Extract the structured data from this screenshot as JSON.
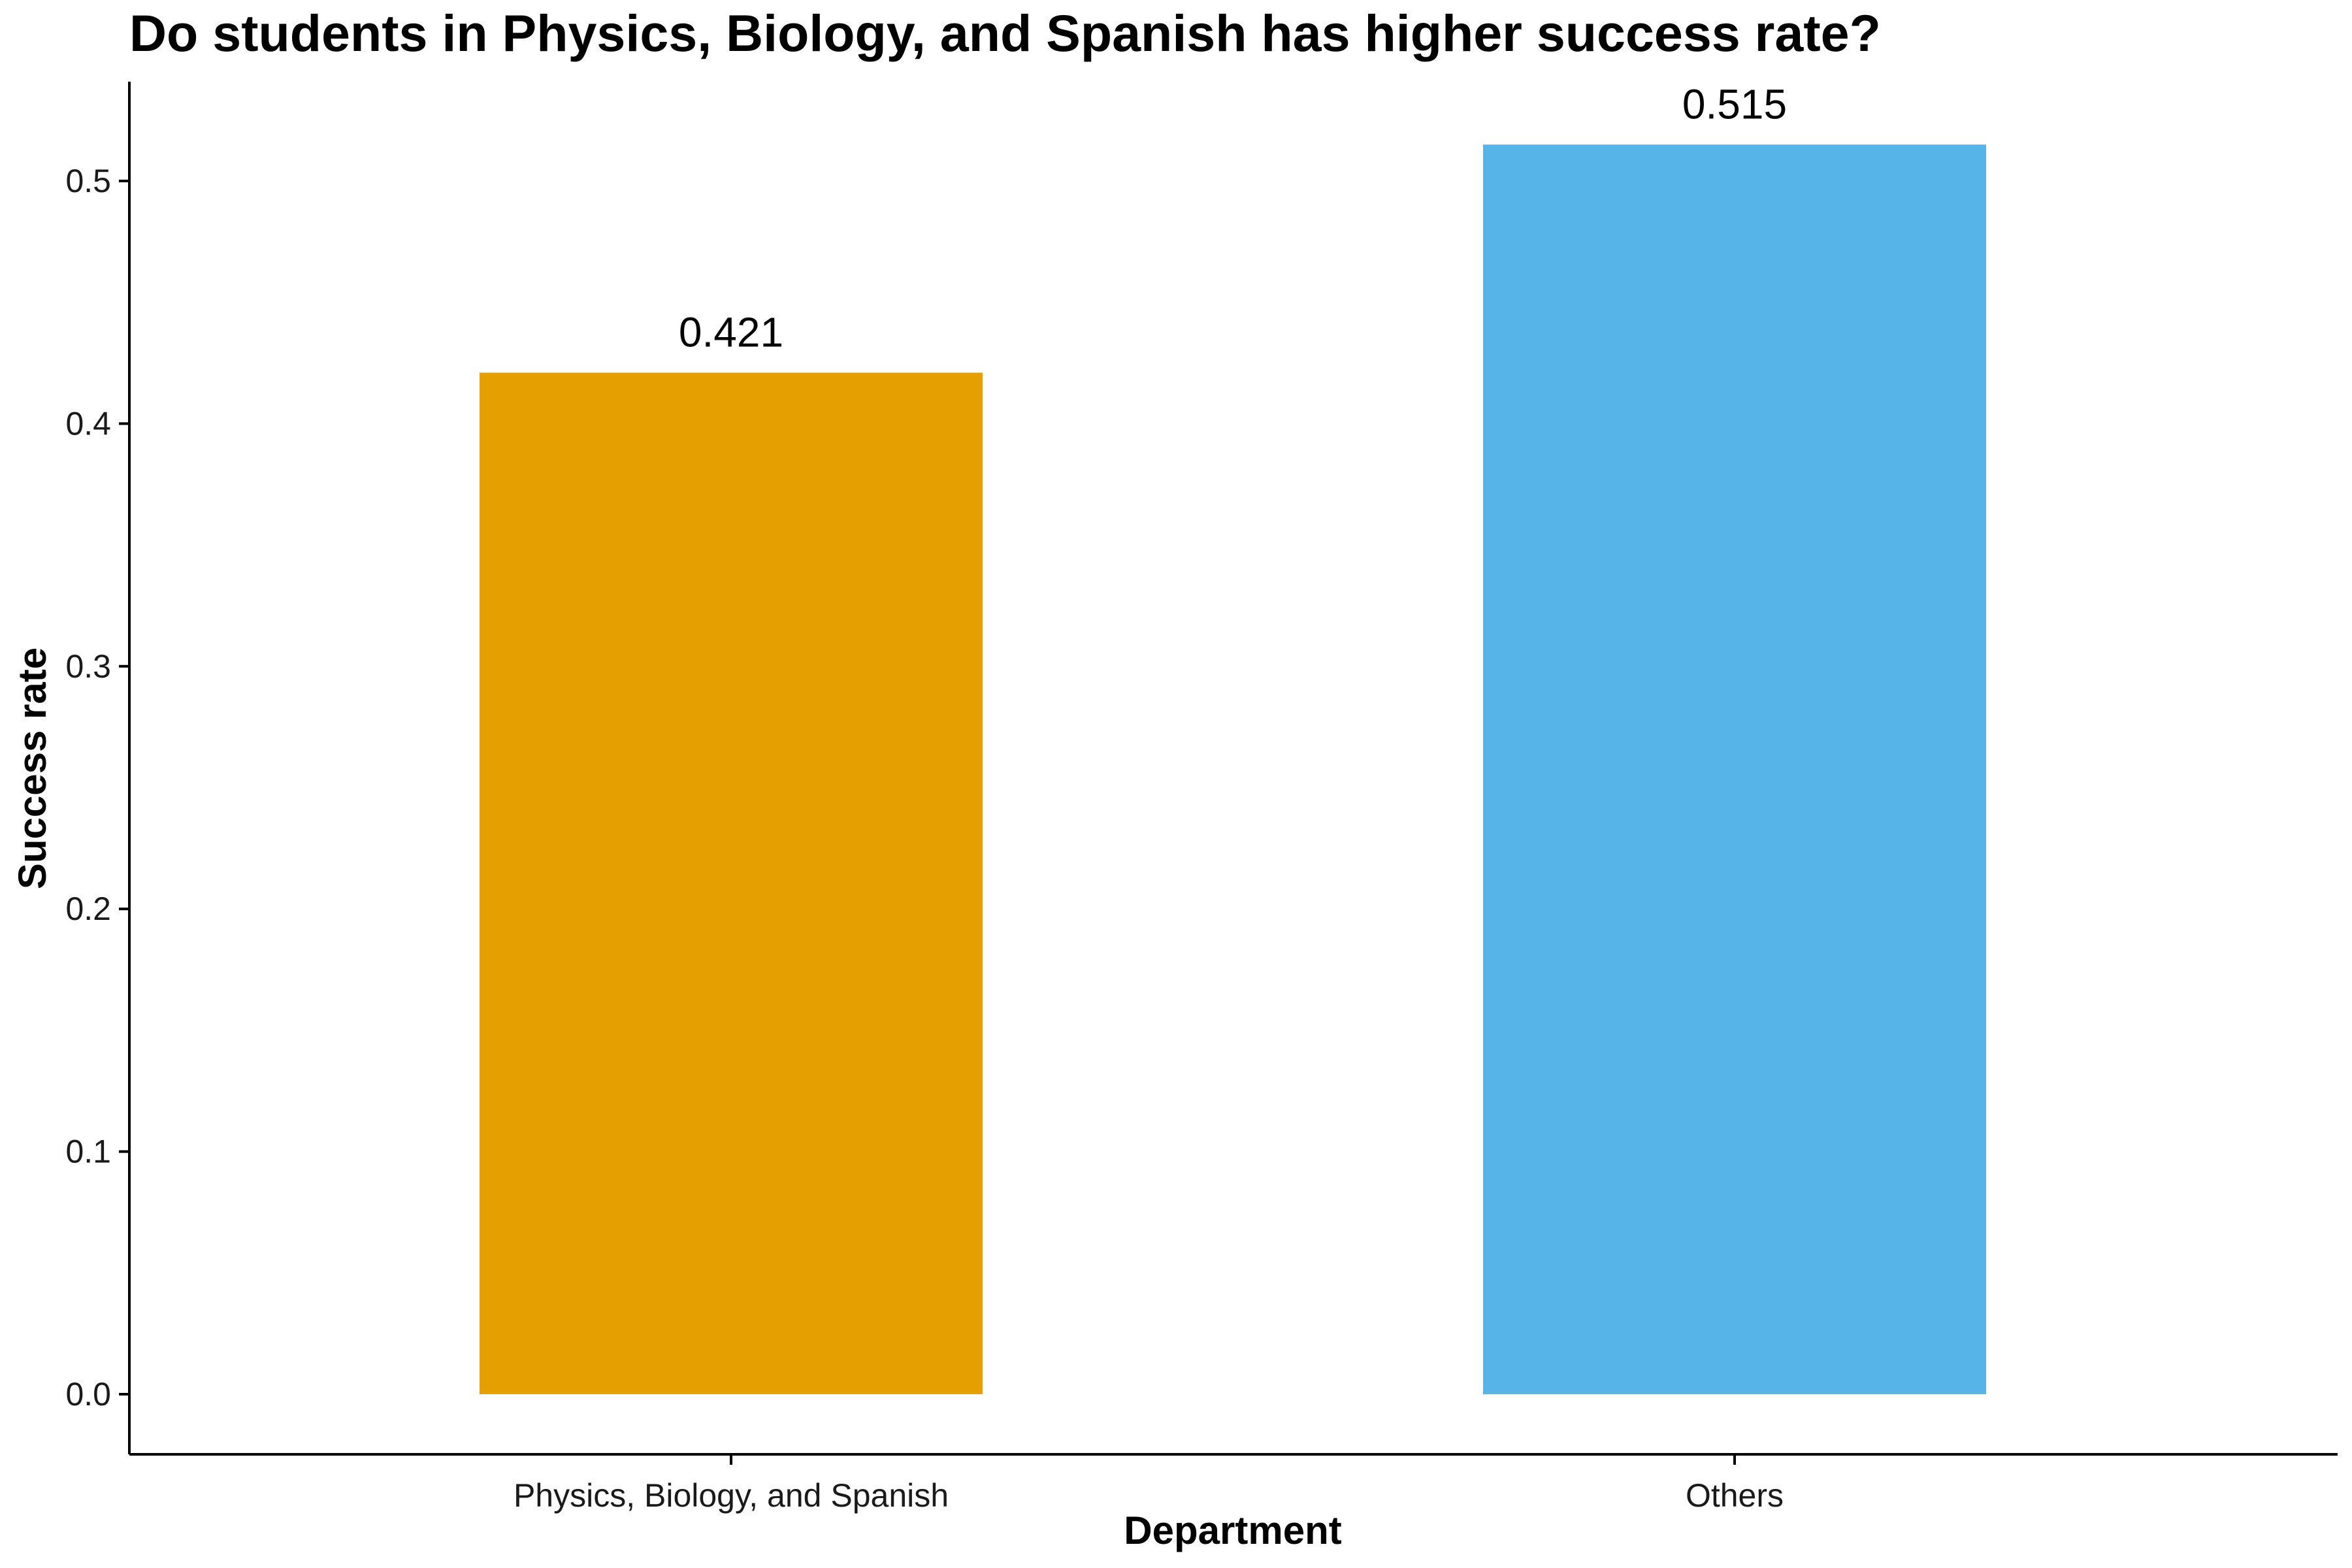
{
  "chart_data": {
    "type": "bar",
    "title": "Do students in Physics, Biology, and Spanish has higher success rate?",
    "xlabel": "Department",
    "ylabel": "Success rate",
    "categories": [
      "Physics, Biology, and Spanish",
      "Others"
    ],
    "values": [
      0.421,
      0.515
    ],
    "data_labels": [
      "0.421",
      "0.515"
    ],
    "colors": [
      "#E69F00",
      "#56B4E9"
    ],
    "ylim": [
      0,
      0.5
    ],
    "yticks": [
      0.0,
      0.1,
      0.2,
      0.3,
      0.4,
      0.5
    ],
    "ytick_labels": [
      "0.0",
      "0.1",
      "0.2",
      "0.3",
      "0.4",
      "0.5"
    ],
    "grid": false,
    "legend": "none"
  }
}
